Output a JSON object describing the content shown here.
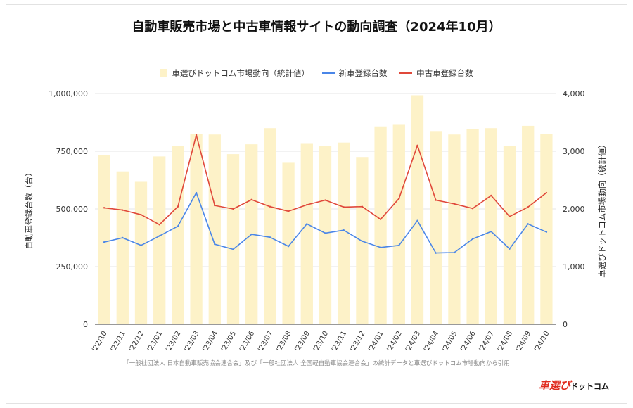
{
  "chart_data": {
    "type": "bar+line",
    "title": "自動車販売市場と中古車情報サイトの動向調査（2024年10月）",
    "categories": [
      "'22/10",
      "'22/11",
      "'22/12",
      "'23/01",
      "'23/02",
      "'23/03",
      "'23/04",
      "'23/05",
      "'23/06",
      "'23/07",
      "'23/08",
      "'23/09",
      "'23/10",
      "'23/11",
      "'23/12",
      "'24/01",
      "'24/02",
      "'24/03",
      "'24/04",
      "'24/05",
      "'24/06",
      "'24/07",
      "'24/08",
      "'24/09",
      "'24/10"
    ],
    "bar_series": {
      "name": "車選びドットコム市場動向（統計値）",
      "axis": "right",
      "values": [
        2930,
        2650,
        2470,
        2910,
        3090,
        3300,
        3290,
        2950,
        3120,
        3400,
        2800,
        3140,
        3090,
        3150,
        2900,
        3430,
        3470,
        3970,
        3350,
        3290,
        3380,
        3400,
        3090,
        3440,
        3300
      ]
    },
    "line_series": [
      {
        "name": "新車登録台数",
        "axis": "left",
        "color": "#4a86e8",
        "values": [
          356000,
          375000,
          342000,
          383000,
          425000,
          570000,
          347000,
          325000,
          390000,
          377000,
          338000,
          435000,
          395000,
          408000,
          360000,
          333000,
          342000,
          449000,
          309000,
          311000,
          370000,
          402000,
          327000,
          435000,
          400000
        ]
      },
      {
        "name": "中古車登録台数",
        "axis": "left",
        "color": "#e0483a",
        "values": [
          505000,
          495000,
          475000,
          432000,
          510000,
          820000,
          515000,
          500000,
          540000,
          510000,
          490000,
          518000,
          538000,
          508000,
          510000,
          455000,
          545000,
          775000,
          538000,
          522000,
          502000,
          558000,
          467000,
          508000,
          570000
        ]
      }
    ],
    "left_axis": {
      "label": "自動車登録台数（台）",
      "min": 0,
      "max": 1000000,
      "ticks": [
        0,
        250000,
        500000,
        750000,
        1000000
      ],
      "tick_labels": [
        "0",
        "250,000",
        "500,000",
        "750,000",
        "1,000,000"
      ]
    },
    "right_axis": {
      "label": "車選びドットコム市場動向（統計値）",
      "min": 0,
      "max": 4000,
      "ticks": [
        0,
        1000,
        2000,
        3000,
        4000
      ],
      "tick_labels": [
        "0",
        "1,000",
        "2,000",
        "3,000",
        "4,000"
      ]
    },
    "grid": true,
    "legend_position": "top",
    "bar_color": "#fdf2c8"
  },
  "legend": {
    "bar_label": "車選びドットコム市場動向（統計値）",
    "new_label": "新車登録台数",
    "used_label": "中古車登録台数"
  },
  "footer": {
    "source": "「一般社団法人 日本自動車販売協会連合会」及び「一般社団法人 全国軽自動車協会連合会」の統計データと車選びドットコム市場動向から引用",
    "brand_main": "車選び",
    "brand_sub": "ドットコム"
  }
}
